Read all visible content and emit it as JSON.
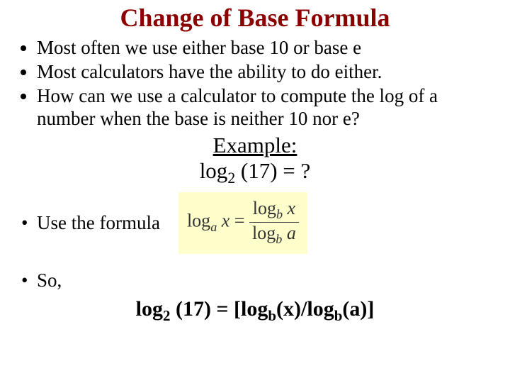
{
  "title": "Change of Base Formula",
  "title_color": "#8b0000",
  "bullets": {
    "b1": "Most often we use either base 10 or base e",
    "b2": "Most calculators have the ability to do either.",
    "b3": "How can we use a calculator to compute the log of a number when the base is neither 10 nor e?",
    "b4": "Use the formula",
    "b5": "So,"
  },
  "example": {
    "label": "Example:",
    "equation_prefix": "log",
    "equation_sub": "2",
    "equation_rest": " (17) = ?"
  },
  "formula": {
    "background": "#ffffcc",
    "lhs_log": "log",
    "lhs_sub": "a",
    "lhs_x": " x",
    "eq": " = ",
    "num_log": "log",
    "num_sub": "b",
    "num_x": " x",
    "den_log": "log",
    "den_sub": "b",
    "den_a": " a"
  },
  "final": {
    "log": "log",
    "sub2": "2",
    "mid": " (17) = [log",
    "subb1": "b",
    "mid2": "(x)/log",
    "subb2": "b",
    "end": "(a)]"
  },
  "fontsizes": {
    "title": 36,
    "bullet": 27,
    "example": 31,
    "final": 30
  }
}
